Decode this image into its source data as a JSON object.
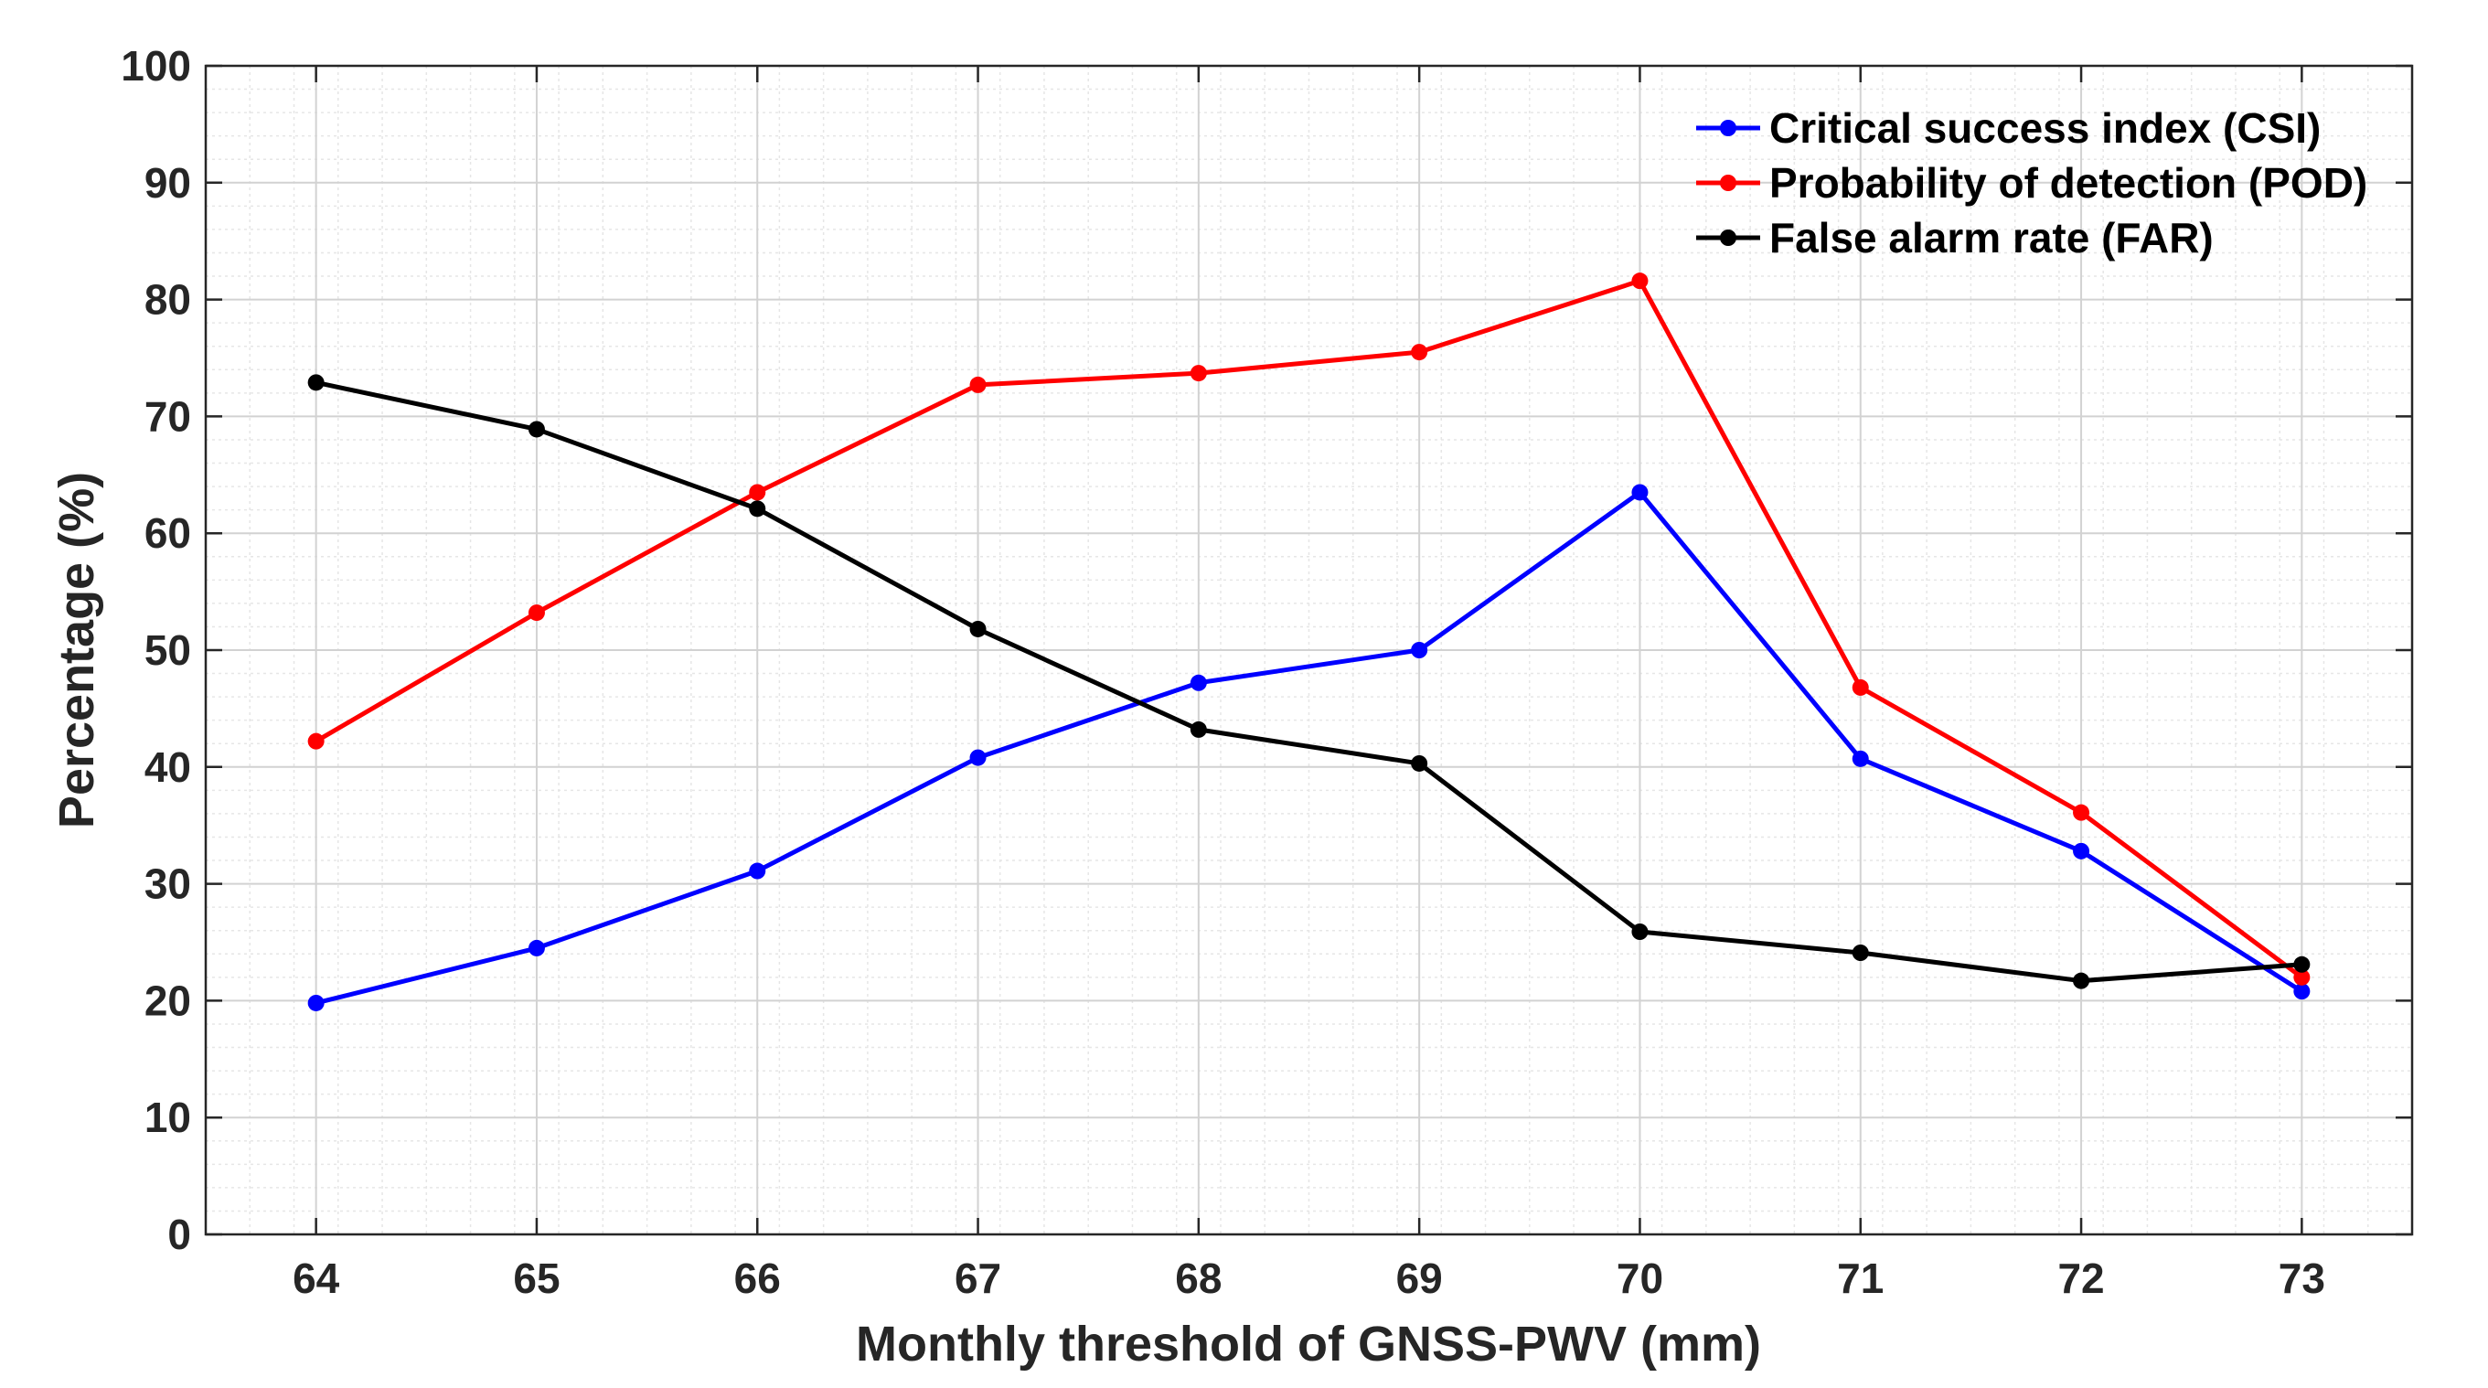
{
  "chart_data": {
    "type": "line",
    "title": "",
    "xlabel": "Monthly threshold of GNSS-PWV (mm)",
    "ylabel": "Percentage (%)",
    "x": [
      64,
      65,
      66,
      67,
      68,
      69,
      70,
      71,
      72,
      73
    ],
    "xlim": [
      63.5,
      73.5
    ],
    "ylim": [
      0,
      100
    ],
    "yticks": [
      0,
      10,
      20,
      30,
      40,
      50,
      60,
      70,
      80,
      90,
      100
    ],
    "grid": true,
    "legend_position": "top-right",
    "series": [
      {
        "name": "Critical success index (CSI)",
        "color": "#0000ff",
        "values": [
          19.8,
          24.5,
          31.1,
          40.8,
          47.2,
          50.0,
          63.5,
          40.7,
          32.8,
          20.8
        ]
      },
      {
        "name": "Probability of detection (POD)",
        "color": "#ff0000",
        "values": [
          42.2,
          53.2,
          63.5,
          72.7,
          73.7,
          75.5,
          81.6,
          46.8,
          36.1,
          22.0
        ]
      },
      {
        "name": "False alarm rate (FAR)",
        "color": "#000000",
        "values": [
          72.9,
          68.9,
          62.1,
          51.8,
          43.2,
          40.3,
          25.9,
          24.1,
          21.7,
          23.1
        ]
      }
    ]
  }
}
